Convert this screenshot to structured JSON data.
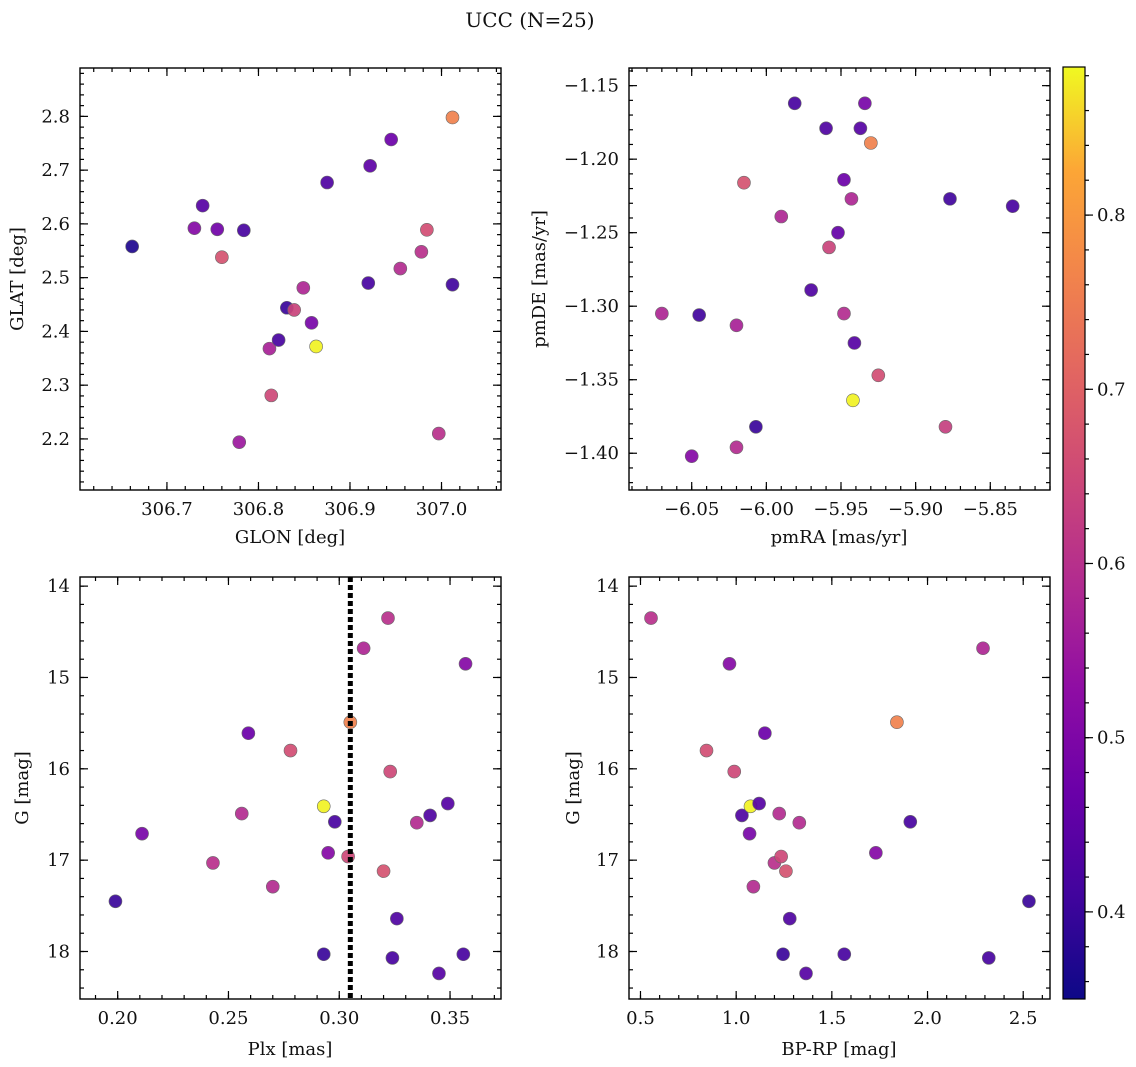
{
  "figure": {
    "title": "UCC (N=25)"
  },
  "colorbar": {
    "range": [
      0.35,
      0.885
    ],
    "ticks": [
      0.4,
      0.5,
      0.6,
      0.7,
      0.8
    ],
    "tick_labels": [
      "0.4",
      "0.5",
      "0.6",
      "0.7",
      "0.8"
    ],
    "colormap": "plasma"
  },
  "chart_data": [
    {
      "type": "scatter",
      "title": "",
      "xlabel": "GLON [deg]",
      "ylabel": "GLAT [deg]",
      "xlim": [
        306.605,
        307.065
      ],
      "ylim": [
        2.105,
        2.89
      ],
      "y_inverted": false,
      "xticks": [
        306.7,
        306.8,
        306.9,
        307.0
      ],
      "xtick_labels": [
        "306.7",
        "306.8",
        "306.9",
        "307.0"
      ],
      "yticks": [
        2.2,
        2.3,
        2.4,
        2.5,
        2.6,
        2.7,
        2.8
      ],
      "ytick_labels": [
        "2.2",
        "2.3",
        "2.4",
        "2.5",
        "2.6",
        "2.7",
        "2.8"
      ],
      "x_minor_step": 0.02,
      "y_minor_step": 0.02,
      "points": [
        {
          "x": 306.662,
          "y": 2.558,
          "c": 0.37
        },
        {
          "x": 306.73,
          "y": 2.592,
          "c": 0.51
        },
        {
          "x": 306.739,
          "y": 2.634,
          "c": 0.44
        },
        {
          "x": 306.755,
          "y": 2.59,
          "c": 0.48
        },
        {
          "x": 306.76,
          "y": 2.538,
          "c": 0.67
        },
        {
          "x": 306.779,
          "y": 2.194,
          "c": 0.55
        },
        {
          "x": 306.784,
          "y": 2.588,
          "c": 0.42
        },
        {
          "x": 306.812,
          "y": 2.368,
          "c": 0.57
        },
        {
          "x": 306.814,
          "y": 2.281,
          "c": 0.65
        },
        {
          "x": 306.822,
          "y": 2.384,
          "c": 0.42
        },
        {
          "x": 306.831,
          "y": 2.444,
          "c": 0.4
        },
        {
          "x": 306.839,
          "y": 2.44,
          "c": 0.64
        },
        {
          "x": 306.849,
          "y": 2.481,
          "c": 0.58
        },
        {
          "x": 306.858,
          "y": 2.416,
          "c": 0.49
        },
        {
          "x": 306.863,
          "y": 2.372,
          "c": 0.88
        },
        {
          "x": 306.875,
          "y": 2.677,
          "c": 0.43
        },
        {
          "x": 306.92,
          "y": 2.49,
          "c": 0.42
        },
        {
          "x": 306.922,
          "y": 2.708,
          "c": 0.45
        },
        {
          "x": 306.945,
          "y": 2.757,
          "c": 0.47
        },
        {
          "x": 306.955,
          "y": 2.517,
          "c": 0.59
        },
        {
          "x": 306.978,
          "y": 2.548,
          "c": 0.6
        },
        {
          "x": 306.984,
          "y": 2.589,
          "c": 0.66
        },
        {
          "x": 306.997,
          "y": 2.21,
          "c": 0.6
        },
        {
          "x": 307.012,
          "y": 2.487,
          "c": 0.41
        },
        {
          "x": 307.012,
          "y": 2.798,
          "c": 0.76
        }
      ]
    },
    {
      "type": "scatter",
      "title": "",
      "xlabel": "pmRA [mas/yr]",
      "ylabel": "pmDE [mas/yr]",
      "xlim": [
        -6.092,
        -5.81
      ],
      "ylim": [
        -1.425,
        -1.138
      ],
      "y_inverted": false,
      "xticks": [
        -6.05,
        -6.0,
        -5.95,
        -5.9,
        -5.85
      ],
      "xtick_labels": [
        "−6.05",
        "−6.00",
        "−5.95",
        "−5.90",
        "−5.85"
      ],
      "yticks": [
        -1.4,
        -1.35,
        -1.3,
        -1.25,
        -1.2,
        -1.15
      ],
      "ytick_labels": [
        "−1.40",
        "−1.35",
        "−1.30",
        "−1.25",
        "−1.20",
        "−1.15"
      ],
      "x_minor_step": 0.01,
      "y_minor_step": 0.01,
      "points": [
        {
          "x": -6.07,
          "y": -1.305,
          "c": 0.58
        },
        {
          "x": -6.05,
          "y": -1.402,
          "c": 0.51
        },
        {
          "x": -6.045,
          "y": -1.306,
          "c": 0.41
        },
        {
          "x": -6.02,
          "y": -1.396,
          "c": 0.59
        },
        {
          "x": -6.02,
          "y": -1.313,
          "c": 0.57
        },
        {
          "x": -6.015,
          "y": -1.216,
          "c": 0.67
        },
        {
          "x": -6.007,
          "y": -1.382,
          "c": 0.4
        },
        {
          "x": -5.99,
          "y": -1.239,
          "c": 0.58
        },
        {
          "x": -5.981,
          "y": -1.162,
          "c": 0.42
        },
        {
          "x": -5.97,
          "y": -1.289,
          "c": 0.43
        },
        {
          "x": -5.96,
          "y": -1.179,
          "c": 0.43
        },
        {
          "x": -5.958,
          "y": -1.26,
          "c": 0.64
        },
        {
          "x": -5.952,
          "y": -1.25,
          "c": 0.46
        },
        {
          "x": -5.948,
          "y": -1.305,
          "c": 0.59
        },
        {
          "x": -5.948,
          "y": -1.214,
          "c": 0.47
        },
        {
          "x": -5.943,
          "y": -1.227,
          "c": 0.58
        },
        {
          "x": -5.942,
          "y": -1.364,
          "c": 0.88
        },
        {
          "x": -5.941,
          "y": -1.325,
          "c": 0.44
        },
        {
          "x": -5.937,
          "y": -1.179,
          "c": 0.44
        },
        {
          "x": -5.934,
          "y": -1.162,
          "c": 0.49
        },
        {
          "x": -5.93,
          "y": -1.189,
          "c": 0.76
        },
        {
          "x": -5.925,
          "y": -1.347,
          "c": 0.66
        },
        {
          "x": -5.88,
          "y": -1.382,
          "c": 0.63
        },
        {
          "x": -5.877,
          "y": -1.227,
          "c": 0.41
        },
        {
          "x": -5.835,
          "y": -1.232,
          "c": 0.42
        }
      ]
    },
    {
      "type": "scatter",
      "title": "",
      "xlabel": "Plx [mas]",
      "ylabel": "G [mag]",
      "xlim": [
        0.183,
        0.373
      ],
      "ylim": [
        13.9,
        18.52
      ],
      "y_inverted": true,
      "xticks": [
        0.2,
        0.25,
        0.3,
        0.35
      ],
      "xtick_labels": [
        "0.20",
        "0.25",
        "0.30",
        "0.35"
      ],
      "yticks": [
        14,
        15,
        16,
        17,
        18
      ],
      "ytick_labels": [
        "14",
        "15",
        "16",
        "17",
        "18"
      ],
      "x_minor_step": 0.01,
      "y_minor_step": 0.2,
      "vline": {
        "x": 0.305,
        "style": "dotted"
      },
      "points": [
        {
          "x": 0.199,
          "y": 17.45,
          "c": 0.4
        },
        {
          "x": 0.211,
          "y": 16.71,
          "c": 0.49
        },
        {
          "x": 0.243,
          "y": 17.03,
          "c": 0.6
        },
        {
          "x": 0.256,
          "y": 16.49,
          "c": 0.59
        },
        {
          "x": 0.259,
          "y": 15.61,
          "c": 0.47
        },
        {
          "x": 0.27,
          "y": 17.29,
          "c": 0.59
        },
        {
          "x": 0.278,
          "y": 15.8,
          "c": 0.66
        },
        {
          "x": 0.293,
          "y": 16.41,
          "c": 0.88
        },
        {
          "x": 0.293,
          "y": 18.03,
          "c": 0.4
        },
        {
          "x": 0.295,
          "y": 16.92,
          "c": 0.51
        },
        {
          "x": 0.298,
          "y": 16.58,
          "c": 0.42
        },
        {
          "x": 0.304,
          "y": 16.96,
          "c": 0.65
        },
        {
          "x": 0.305,
          "y": 15.49,
          "c": 0.76
        },
        {
          "x": 0.311,
          "y": 14.68,
          "c": 0.58
        },
        {
          "x": 0.32,
          "y": 17.12,
          "c": 0.67
        },
        {
          "x": 0.322,
          "y": 14.35,
          "c": 0.6
        },
        {
          "x": 0.323,
          "y": 16.03,
          "c": 0.65
        },
        {
          "x": 0.324,
          "y": 18.07,
          "c": 0.42
        },
        {
          "x": 0.326,
          "y": 17.64,
          "c": 0.43
        },
        {
          "x": 0.335,
          "y": 16.59,
          "c": 0.59
        },
        {
          "x": 0.341,
          "y": 16.51,
          "c": 0.43
        },
        {
          "x": 0.345,
          "y": 18.24,
          "c": 0.44
        },
        {
          "x": 0.349,
          "y": 16.38,
          "c": 0.44
        },
        {
          "x": 0.356,
          "y": 18.03,
          "c": 0.42
        },
        {
          "x": 0.357,
          "y": 14.85,
          "c": 0.51
        }
      ]
    },
    {
      "type": "scatter",
      "title": "",
      "xlabel": "BP-RP [mag]",
      "ylabel": "G [mag]",
      "xlim": [
        0.44,
        2.64
      ],
      "ylim": [
        13.9,
        18.52
      ],
      "y_inverted": true,
      "xticks": [
        0.5,
        1.0,
        1.5,
        2.0,
        2.5
      ],
      "xtick_labels": [
        "0.5",
        "1.0",
        "1.5",
        "2.0",
        "2.5"
      ],
      "yticks": [
        14,
        15,
        16,
        17,
        18
      ],
      "ytick_labels": [
        "14",
        "15",
        "16",
        "17",
        "18"
      ],
      "x_minor_step": 0.1,
      "y_minor_step": 0.2,
      "points": [
        {
          "x": 0.555,
          "y": 14.35,
          "c": 0.6
        },
        {
          "x": 0.845,
          "y": 15.8,
          "c": 0.66
        },
        {
          "x": 0.965,
          "y": 14.85,
          "c": 0.51
        },
        {
          "x": 0.99,
          "y": 16.03,
          "c": 0.65
        },
        {
          "x": 1.03,
          "y": 16.51,
          "c": 0.43
        },
        {
          "x": 1.07,
          "y": 16.71,
          "c": 0.49
        },
        {
          "x": 1.075,
          "y": 16.41,
          "c": 0.88
        },
        {
          "x": 1.09,
          "y": 17.29,
          "c": 0.59
        },
        {
          "x": 1.12,
          "y": 16.38,
          "c": 0.44
        },
        {
          "x": 1.15,
          "y": 15.61,
          "c": 0.47
        },
        {
          "x": 1.2,
          "y": 17.03,
          "c": 0.6
        },
        {
          "x": 1.225,
          "y": 16.49,
          "c": 0.59
        },
        {
          "x": 1.235,
          "y": 16.96,
          "c": 0.65
        },
        {
          "x": 1.245,
          "y": 18.03,
          "c": 0.4
        },
        {
          "x": 1.26,
          "y": 17.12,
          "c": 0.67
        },
        {
          "x": 1.28,
          "y": 17.64,
          "c": 0.43
        },
        {
          "x": 1.33,
          "y": 16.59,
          "c": 0.59
        },
        {
          "x": 1.365,
          "y": 18.24,
          "c": 0.44
        },
        {
          "x": 1.565,
          "y": 18.03,
          "c": 0.42
        },
        {
          "x": 1.73,
          "y": 16.92,
          "c": 0.51
        },
        {
          "x": 1.84,
          "y": 15.49,
          "c": 0.76
        },
        {
          "x": 1.91,
          "y": 16.58,
          "c": 0.42
        },
        {
          "x": 2.29,
          "y": 14.68,
          "c": 0.58
        },
        {
          "x": 2.32,
          "y": 18.07,
          "c": 0.42
        },
        {
          "x": 2.53,
          "y": 17.45,
          "c": 0.4
        }
      ]
    }
  ]
}
